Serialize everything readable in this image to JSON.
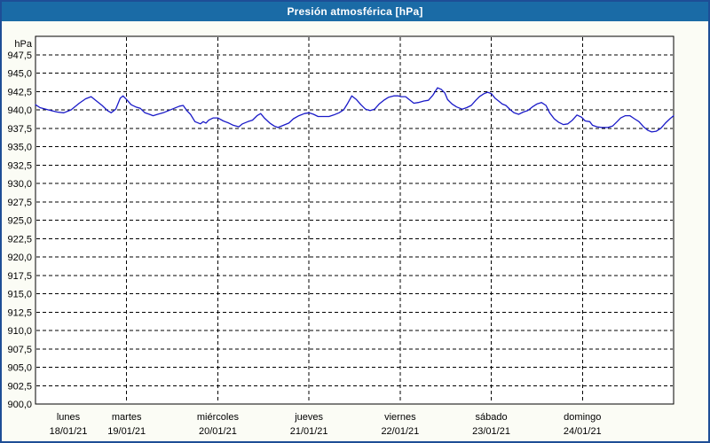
{
  "window": {
    "title": "Presión atmosférica [hPa]"
  },
  "chart_data": {
    "type": "line",
    "title": "Presión atmosférica [hPa]",
    "y_axis": {
      "unit": "hPa",
      "min": 900,
      "max": 950,
      "tick_step": 2.5,
      "tick_labels": [
        "947,5",
        "945,0",
        "942,5",
        "940,0",
        "937,5",
        "935,0",
        "932,5",
        "930,0",
        "927,5",
        "925,0",
        "922,5",
        "920,0",
        "917,5",
        "915,0",
        "912,5",
        "910,0",
        "907,5",
        "905,0",
        "902,5",
        "900,0"
      ]
    },
    "x_axis": {
      "days": [
        {
          "name": "lunes",
          "date": "18/01/21"
        },
        {
          "name": "martes",
          "date": "19/01/21"
        },
        {
          "name": "miércoles",
          "date": "20/01/21"
        },
        {
          "name": "jueves",
          "date": "21/01/21"
        },
        {
          "name": "viernes",
          "date": "22/01/21"
        },
        {
          "name": "sábado",
          "date": "23/01/21"
        },
        {
          "name": "domingo",
          "date": "24/01/21"
        }
      ]
    },
    "grid": "dashed",
    "legend": "none",
    "colors": {
      "line": "#1a1ac8",
      "titlebar": "#1a6ba6",
      "border": "#1e4e96",
      "background": "#fbfcf5",
      "plot_bg": "#ffffff",
      "grid": "#000000"
    },
    "series": [
      {
        "name": "Presión atmosférica",
        "unit": "hPa",
        "points": [
          [
            0.0,
            940.7
          ],
          [
            0.05,
            940.3
          ],
          [
            0.14,
            940.0
          ],
          [
            0.24,
            939.7
          ],
          [
            0.31,
            939.6
          ],
          [
            0.39,
            940.0
          ],
          [
            0.48,
            940.9
          ],
          [
            0.55,
            941.5
          ],
          [
            0.61,
            941.8
          ],
          [
            0.66,
            941.3
          ],
          [
            0.73,
            940.6
          ],
          [
            0.79,
            939.9
          ],
          [
            0.83,
            939.6
          ],
          [
            0.88,
            940.1
          ],
          [
            0.93,
            941.6
          ],
          [
            0.96,
            941.9
          ],
          [
            1.0,
            941.4
          ],
          [
            1.05,
            940.7
          ],
          [
            1.1,
            940.4
          ],
          [
            1.15,
            940.2
          ],
          [
            1.2,
            939.6
          ],
          [
            1.25,
            939.4
          ],
          [
            1.29,
            939.2
          ],
          [
            1.34,
            939.4
          ],
          [
            1.4,
            939.6
          ],
          [
            1.46,
            939.9
          ],
          [
            1.52,
            940.2
          ],
          [
            1.58,
            940.5
          ],
          [
            1.62,
            940.6
          ],
          [
            1.66,
            939.9
          ],
          [
            1.7,
            939.4
          ],
          [
            1.75,
            938.4
          ],
          [
            1.81,
            938.1
          ],
          [
            1.84,
            938.4
          ],
          [
            1.87,
            938.2
          ],
          [
            1.9,
            938.6
          ],
          [
            1.95,
            938.9
          ],
          [
            2.0,
            938.9
          ],
          [
            2.06,
            938.5
          ],
          [
            2.12,
            938.2
          ],
          [
            2.17,
            937.9
          ],
          [
            2.23,
            937.7
          ],
          [
            2.27,
            938.1
          ],
          [
            2.33,
            938.4
          ],
          [
            2.38,
            938.6
          ],
          [
            2.43,
            939.2
          ],
          [
            2.47,
            939.5
          ],
          [
            2.51,
            938.9
          ],
          [
            2.57,
            938.2
          ],
          [
            2.62,
            937.8
          ],
          [
            2.66,
            937.6
          ],
          [
            2.72,
            937.9
          ],
          [
            2.78,
            938.2
          ],
          [
            2.83,
            938.8
          ],
          [
            2.89,
            939.2
          ],
          [
            2.95,
            939.5
          ],
          [
            3.0,
            939.6
          ],
          [
            3.05,
            939.4
          ],
          [
            3.1,
            939.1
          ],
          [
            3.16,
            939.1
          ],
          [
            3.22,
            939.1
          ],
          [
            3.27,
            939.3
          ],
          [
            3.33,
            939.6
          ],
          [
            3.38,
            940.0
          ],
          [
            3.42,
            940.8
          ],
          [
            3.47,
            941.9
          ],
          [
            3.52,
            941.4
          ],
          [
            3.57,
            940.7
          ],
          [
            3.62,
            940.1
          ],
          [
            3.67,
            939.9
          ],
          [
            3.72,
            940.1
          ],
          [
            3.77,
            940.8
          ],
          [
            3.82,
            941.3
          ],
          [
            3.87,
            941.7
          ],
          [
            3.93,
            941.9
          ],
          [
            3.98,
            941.9
          ],
          [
            4.01,
            941.8
          ],
          [
            4.06,
            941.8
          ],
          [
            4.11,
            941.3
          ],
          [
            4.15,
            940.9
          ],
          [
            4.2,
            941.0
          ],
          [
            4.26,
            941.2
          ],
          [
            4.31,
            941.3
          ],
          [
            4.36,
            942.0
          ],
          [
            4.41,
            943.0
          ],
          [
            4.45,
            942.8
          ],
          [
            4.49,
            942.3
          ],
          [
            4.52,
            941.4
          ],
          [
            4.57,
            940.8
          ],
          [
            4.62,
            940.4
          ],
          [
            4.68,
            940.1
          ],
          [
            4.73,
            940.3
          ],
          [
            4.78,
            940.6
          ],
          [
            4.83,
            941.3
          ],
          [
            4.87,
            941.8
          ],
          [
            4.92,
            942.2
          ],
          [
            4.96,
            942.4
          ],
          [
            5.0,
            942.2
          ],
          [
            5.04,
            941.6
          ],
          [
            5.08,
            941.2
          ],
          [
            5.12,
            940.8
          ],
          [
            5.16,
            940.6
          ],
          [
            5.21,
            940.0
          ],
          [
            5.25,
            939.6
          ],
          [
            5.3,
            939.4
          ],
          [
            5.35,
            939.7
          ],
          [
            5.4,
            939.9
          ],
          [
            5.45,
            940.4
          ],
          [
            5.5,
            940.8
          ],
          [
            5.55,
            941.0
          ],
          [
            5.6,
            940.6
          ],
          [
            5.64,
            939.6
          ],
          [
            5.69,
            938.8
          ],
          [
            5.74,
            938.3
          ],
          [
            5.79,
            938.0
          ],
          [
            5.84,
            938.1
          ],
          [
            5.89,
            938.6
          ],
          [
            5.94,
            939.3
          ],
          [
            5.99,
            939.0
          ],
          [
            6.03,
            938.5
          ],
          [
            6.08,
            938.4
          ],
          [
            6.11,
            937.9
          ],
          [
            6.16,
            937.7
          ],
          [
            6.21,
            937.6
          ],
          [
            6.28,
            937.6
          ],
          [
            6.33,
            937.8
          ],
          [
            6.38,
            938.4
          ],
          [
            6.42,
            938.9
          ],
          [
            6.47,
            939.2
          ],
          [
            6.52,
            939.2
          ],
          [
            6.57,
            938.8
          ],
          [
            6.62,
            938.4
          ],
          [
            6.67,
            937.7
          ],
          [
            6.72,
            937.2
          ],
          [
            6.76,
            937.0
          ],
          [
            6.81,
            937.1
          ],
          [
            6.86,
            937.5
          ],
          [
            6.91,
            938.2
          ],
          [
            6.96,
            938.8
          ],
          [
            7.0,
            939.2
          ]
        ]
      }
    ]
  }
}
